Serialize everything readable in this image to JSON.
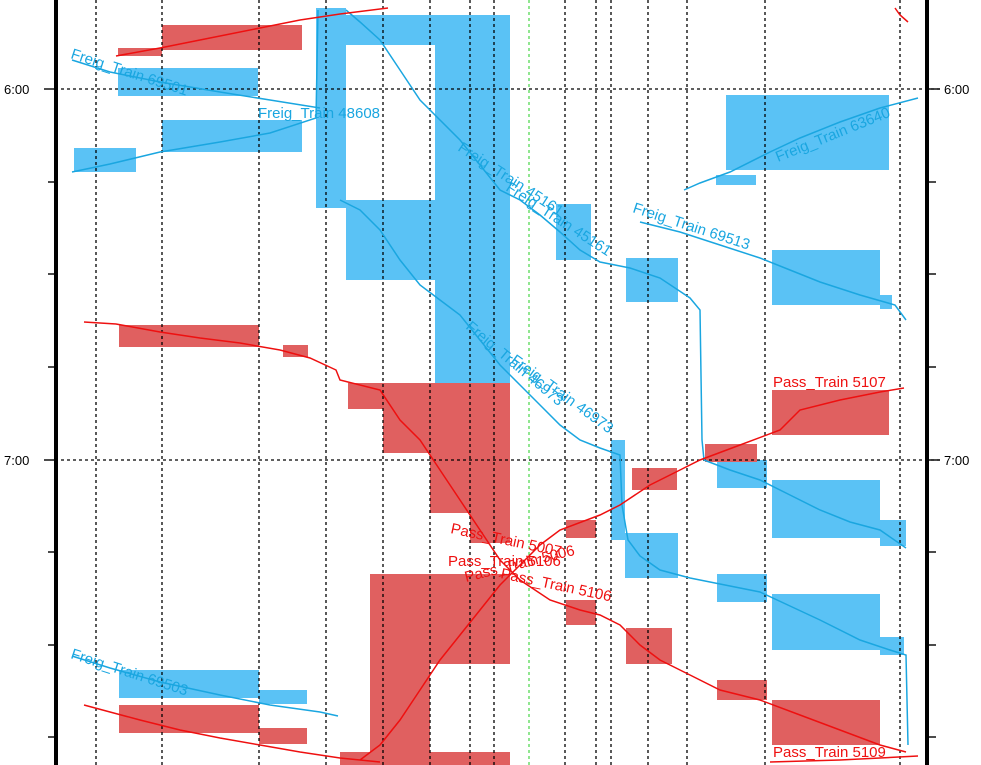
{
  "axis": {
    "times": [
      "6:00",
      "7:00"
    ]
  },
  "trains": {
    "freight": [
      {
        "name": "Freig_Train 69501"
      },
      {
        "name": "Freig_Train 48608"
      },
      {
        "name": "Freig_Train 45161"
      },
      {
        "name": "Freig_Train 45161"
      },
      {
        "name": "Freig_Train 69513"
      },
      {
        "name": "Freig_Train 63640"
      },
      {
        "name": "Freig_Train 46973"
      },
      {
        "name": "Freig_Train 46973"
      },
      {
        "name": "Freig_Train 69503"
      }
    ],
    "passenger": [
      {
        "name": "Pass_Train 5107"
      },
      {
        "name": "Pass_Train 5007"
      },
      {
        "name": "Pass_Train 5106"
      },
      {
        "name": "Pass_Train 5006"
      },
      {
        "name": "Pass_Train 5106"
      },
      {
        "name": "Pass_Train 5109"
      }
    ]
  },
  "colors": {
    "freight_block": "#5ac2f5",
    "freight_line": "#1aa6e0",
    "passenger_block": "#e06060",
    "passenger_line": "#ee1010",
    "current_time_line": "#22cc22"
  }
}
